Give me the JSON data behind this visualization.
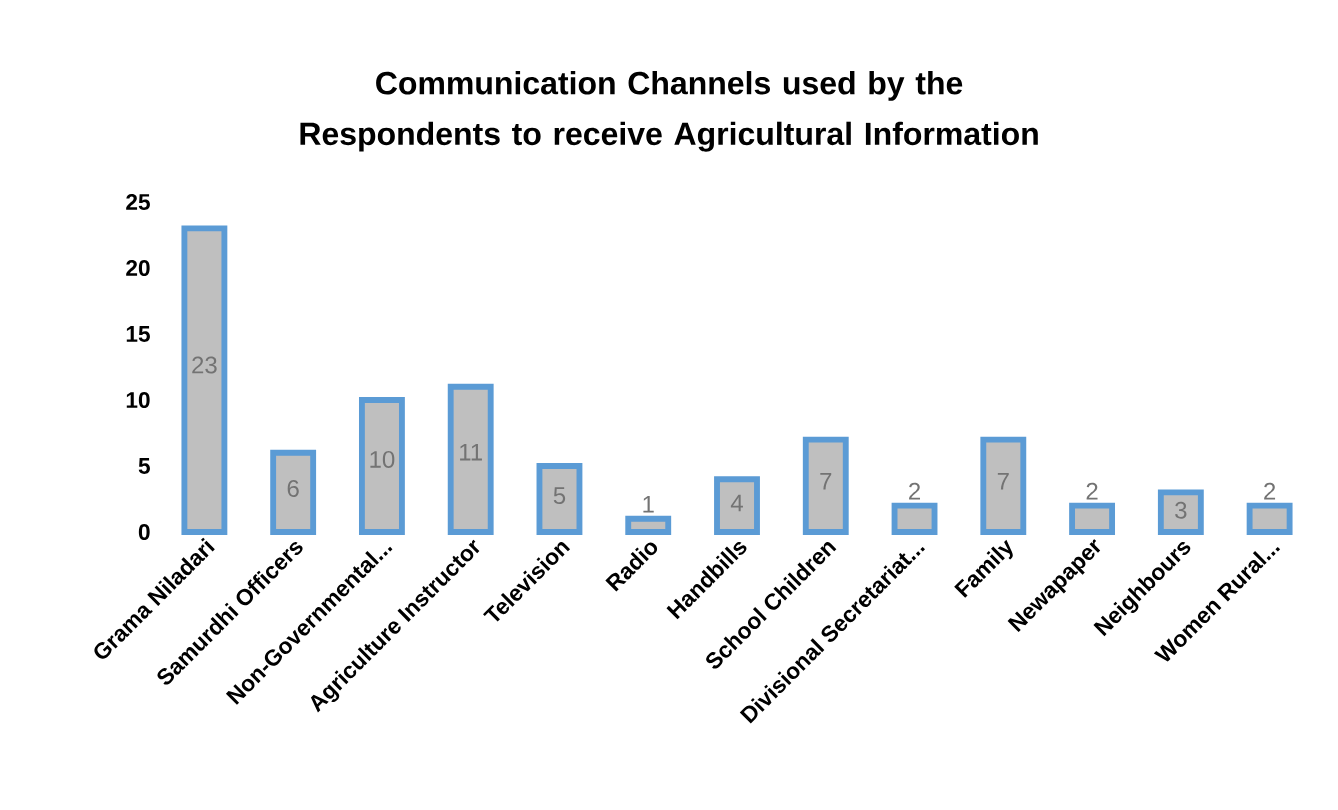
{
  "chart_data": {
    "type": "bar",
    "title": "Communication  Channels used by the Respondents to receive Agricultural  Information",
    "categories": [
      "Grama Niladari",
      "Samurdhi Officers",
      "Non-Governmental...",
      "Agriculture Instructor",
      "Television",
      "Radio",
      "Handbills",
      "School Children",
      "Divisional Secretariat...",
      "Family",
      "Newapaper",
      "Neighbours",
      "Women Rural..."
    ],
    "values": [
      23,
      6,
      10,
      11,
      5,
      1,
      4,
      7,
      2,
      7,
      2,
      3,
      2
    ],
    "color": "#5b9bd5",
    "ylim": [
      0,
      25
    ],
    "yticks": [
      0,
      5,
      10,
      15,
      20,
      25
    ],
    "grid": false,
    "data_labels": true
  }
}
